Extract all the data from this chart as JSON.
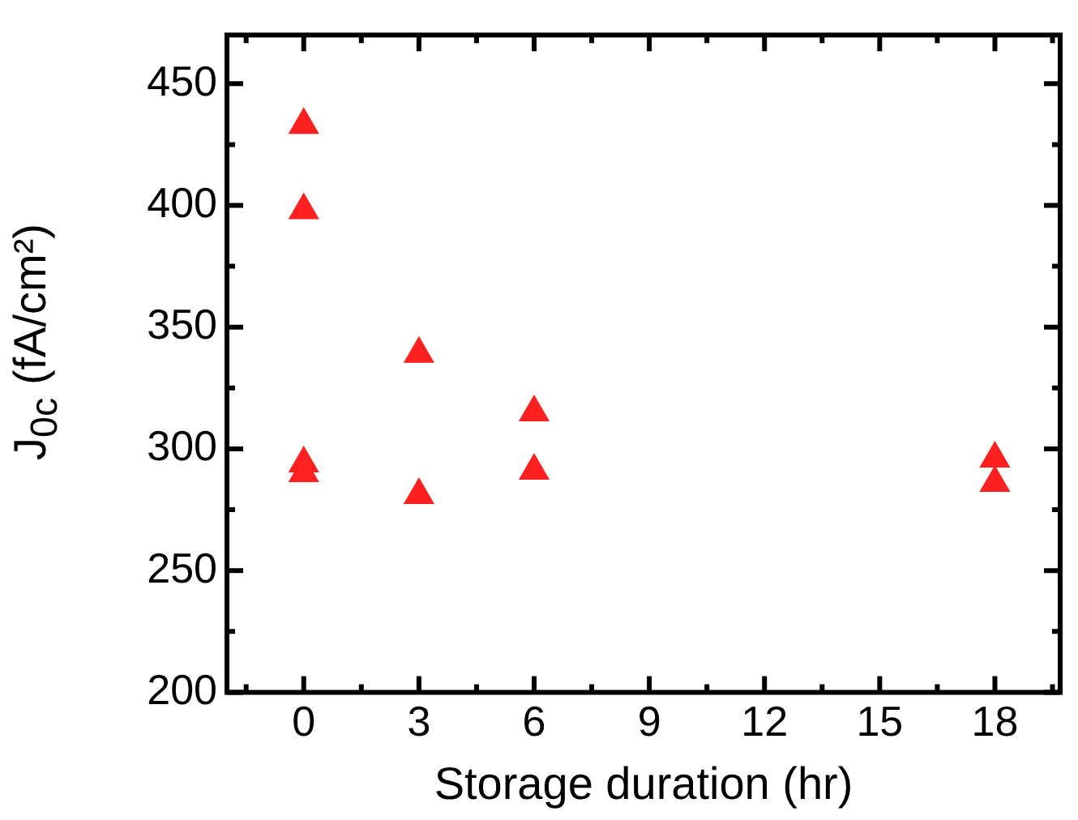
{
  "chart_data": {
    "type": "scatter",
    "xlabel": "Storage duration (hr)",
    "ylabel": "J$_{0c}$ (fA/cm²)",
    "series": [
      {
        "color": "#ff2020",
        "x": [
          0,
          0,
          0,
          0,
          3,
          3,
          6,
          6,
          18,
          18
        ],
        "values": [
          433,
          398,
          294,
          290,
          339,
          281,
          315,
          291,
          296,
          286
        ]
      }
    ],
    "xlim": [
      -2,
      19.7
    ],
    "xticks": [
      0,
      3,
      6,
      9,
      12,
      15,
      18
    ],
    "ylim": [
      200,
      470
    ],
    "yticks": [
      200,
      250,
      300,
      350,
      400,
      450
    ],
    "marker": "triangle",
    "grid": false,
    "legend": false
  }
}
